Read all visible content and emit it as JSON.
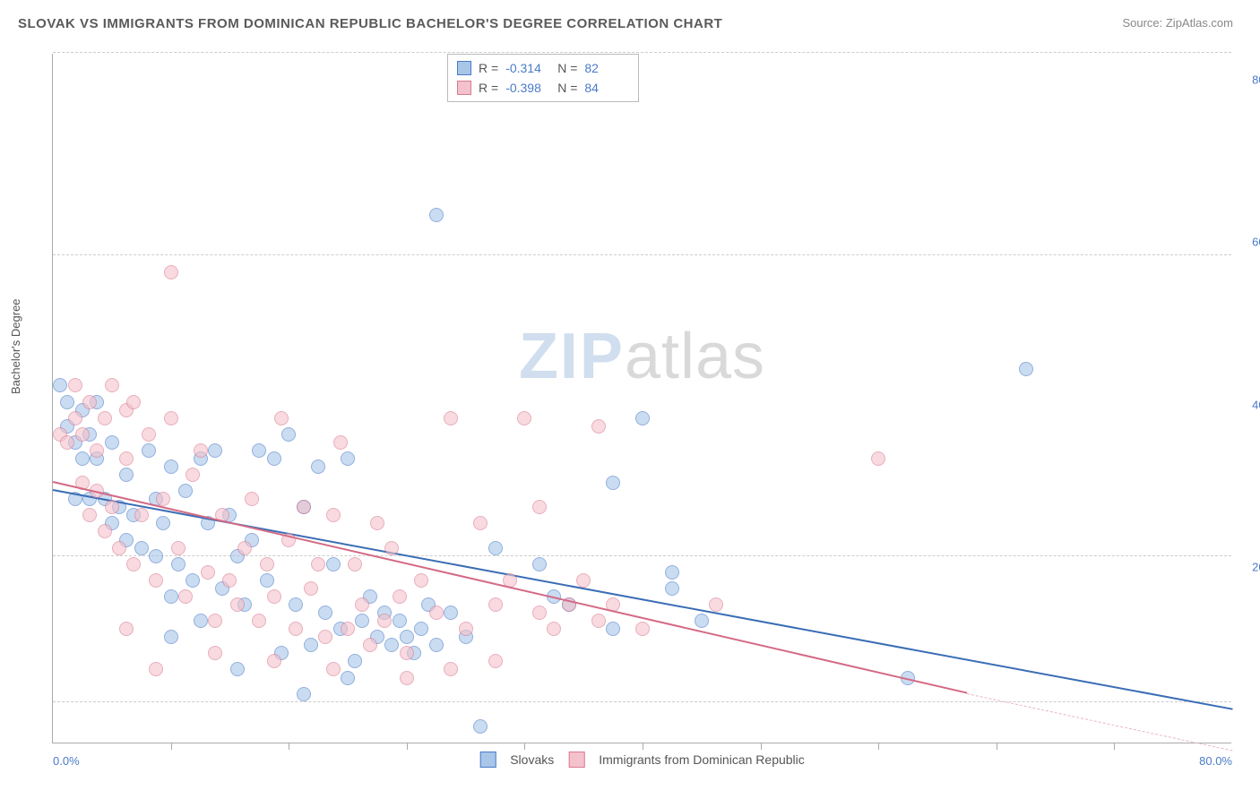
{
  "title": "SLOVAK VS IMMIGRANTS FROM DOMINICAN REPUBLIC BACHELOR'S DEGREE CORRELATION CHART",
  "source_label": "Source: ",
  "source_value": "ZipAtlas.com",
  "ylabel": "Bachelor's Degree",
  "watermark": {
    "a": "ZIP",
    "b": "atlas"
  },
  "chart": {
    "type": "scatter",
    "background_color": "#ffffff",
    "grid_color": "#cccccc",
    "axis_color": "#aaaaaa",
    "label_color": "#4a7bc8",
    "xlim": [
      0,
      80
    ],
    "ylim": [
      0,
      85
    ],
    "ytick_labels": [
      {
        "v": 20,
        "t": "20.0%"
      },
      {
        "v": 40,
        "t": "40.0%"
      },
      {
        "v": 60,
        "t": "60.0%"
      },
      {
        "v": 80,
        "t": "80.0%"
      }
    ],
    "x_start_label": "0.0%",
    "x_end_label": "80.0%",
    "xtick_positions": [
      8,
      16,
      24,
      32,
      40,
      48,
      56,
      64,
      72
    ],
    "gridlines_y": [
      5,
      23,
      60,
      85
    ]
  },
  "correlation_box": {
    "rows": [
      {
        "swatch_fill": "#a8c6e8",
        "swatch_border": "#4a7bc8",
        "r_label": "R =",
        "r": "-0.314",
        "n_label": "N =",
        "n": "82"
      },
      {
        "swatch_fill": "#f4c2cc",
        "swatch_border": "#d97a8f",
        "r_label": "R =",
        "r": "-0.398",
        "n_label": "N =",
        "n": "84"
      }
    ]
  },
  "legend": {
    "items": [
      {
        "swatch_fill": "#a8c6e8",
        "swatch_border": "#4a7bc8",
        "label": "Slovaks"
      },
      {
        "swatch_fill": "#f4c2cc",
        "swatch_border": "#d97a8f",
        "label": "Immigrants from Dominican Republic"
      }
    ]
  },
  "series": [
    {
      "name": "slovaks",
      "fill": "#a8c6e8",
      "stroke": "#4a7bc8",
      "marker_size": 16,
      "trend": {
        "x1": 0,
        "y1": 31,
        "x2": 80,
        "y2": 4,
        "color": "#3a6db5",
        "width": 2
      },
      "points": [
        [
          0.5,
          44
        ],
        [
          1,
          42
        ],
        [
          1,
          39
        ],
        [
          1.5,
          37
        ],
        [
          1.5,
          30
        ],
        [
          2,
          41
        ],
        [
          2,
          35
        ],
        [
          2.5,
          38
        ],
        [
          2.5,
          30
        ],
        [
          3,
          42
        ],
        [
          3,
          35
        ],
        [
          3.5,
          30
        ],
        [
          4,
          27
        ],
        [
          4,
          37
        ],
        [
          4.5,
          29
        ],
        [
          5,
          25
        ],
        [
          5,
          33
        ],
        [
          5.5,
          28
        ],
        [
          6,
          24
        ],
        [
          6.5,
          36
        ],
        [
          7,
          23
        ],
        [
          7,
          30
        ],
        [
          7.5,
          27
        ],
        [
          8,
          18
        ],
        [
          8,
          34
        ],
        [
          8.5,
          22
        ],
        [
          9,
          31
        ],
        [
          9.5,
          20
        ],
        [
          10,
          35
        ],
        [
          10,
          15
        ],
        [
          10.5,
          27
        ],
        [
          11,
          36
        ],
        [
          11.5,
          19
        ],
        [
          12,
          28
        ],
        [
          12.5,
          23
        ],
        [
          13,
          17
        ],
        [
          13.5,
          25
        ],
        [
          14,
          36
        ],
        [
          14.5,
          20
        ],
        [
          15,
          35
        ],
        [
          15.5,
          11
        ],
        [
          16,
          38
        ],
        [
          16.5,
          17
        ],
        [
          17,
          29
        ],
        [
          17.5,
          12
        ],
        [
          18,
          34
        ],
        [
          18.5,
          16
        ],
        [
          19,
          22
        ],
        [
          19.5,
          14
        ],
        [
          20,
          35
        ],
        [
          20.5,
          10
        ],
        [
          21,
          15
        ],
        [
          21.5,
          18
        ],
        [
          22,
          13
        ],
        [
          22.5,
          16
        ],
        [
          23,
          12
        ],
        [
          23.5,
          15
        ],
        [
          24,
          13
        ],
        [
          24.5,
          11
        ],
        [
          25,
          14
        ],
        [
          25.5,
          17
        ],
        [
          26,
          12
        ],
        [
          27,
          16
        ],
        [
          28,
          13
        ],
        [
          29,
          2
        ],
        [
          17,
          6
        ],
        [
          20,
          8
        ],
        [
          26,
          65
        ],
        [
          30,
          24
        ],
        [
          33,
          22
        ],
        [
          34,
          18
        ],
        [
          35,
          17
        ],
        [
          38,
          32
        ],
        [
          40,
          40
        ],
        [
          42,
          19
        ],
        [
          42,
          21
        ],
        [
          44,
          15
        ],
        [
          38,
          14
        ],
        [
          58,
          8
        ],
        [
          66,
          46
        ],
        [
          12.5,
          9
        ],
        [
          8,
          13
        ]
      ]
    },
    {
      "name": "dominican",
      "fill": "#f4c2cc",
      "stroke": "#d97a8f",
      "marker_size": 16,
      "trend_solid": {
        "x1": 0,
        "y1": 32,
        "x2": 62,
        "y2": 6,
        "color": "#d46a85",
        "width": 2
      },
      "trend_dash": {
        "x1": 62,
        "y1": 6,
        "x2": 80,
        "y2": -1,
        "color": "#e8b6c0",
        "width": 1.5
      },
      "points": [
        [
          0.5,
          38
        ],
        [
          1,
          37
        ],
        [
          1.5,
          40
        ],
        [
          1.5,
          44
        ],
        [
          2,
          38
        ],
        [
          2,
          32
        ],
        [
          2.5,
          42
        ],
        [
          2.5,
          28
        ],
        [
          3,
          36
        ],
        [
          3,
          31
        ],
        [
          3.5,
          40
        ],
        [
          3.5,
          26
        ],
        [
          4,
          44
        ],
        [
          4,
          29
        ],
        [
          4.5,
          24
        ],
        [
          5,
          41
        ],
        [
          5,
          35
        ],
        [
          5.5,
          42
        ],
        [
          5.5,
          22
        ],
        [
          6,
          28
        ],
        [
          6.5,
          38
        ],
        [
          7,
          20
        ],
        [
          7.5,
          30
        ],
        [
          8,
          40
        ],
        [
          8.5,
          24
        ],
        [
          9,
          18
        ],
        [
          9.5,
          33
        ],
        [
          10,
          36
        ],
        [
          10.5,
          21
        ],
        [
          11,
          15
        ],
        [
          11.5,
          28
        ],
        [
          12,
          20
        ],
        [
          12.5,
          17
        ],
        [
          13,
          24
        ],
        [
          13.5,
          30
        ],
        [
          14,
          15
        ],
        [
          14.5,
          22
        ],
        [
          15,
          18
        ],
        [
          15.5,
          40
        ],
        [
          16,
          25
        ],
        [
          16.5,
          14
        ],
        [
          17,
          29
        ],
        [
          17.5,
          19
        ],
        [
          18,
          22
        ],
        [
          18.5,
          13
        ],
        [
          19,
          28
        ],
        [
          19.5,
          37
        ],
        [
          20,
          14
        ],
        [
          20.5,
          22
        ],
        [
          21,
          17
        ],
        [
          21.5,
          12
        ],
        [
          22,
          27
        ],
        [
          22.5,
          15
        ],
        [
          23,
          24
        ],
        [
          23.5,
          18
        ],
        [
          24,
          11
        ],
        [
          25,
          20
        ],
        [
          26,
          16
        ],
        [
          27,
          40
        ],
        [
          28,
          14
        ],
        [
          29,
          27
        ],
        [
          30,
          17
        ],
        [
          31,
          20
        ],
        [
          32,
          40
        ],
        [
          33,
          16
        ],
        [
          34,
          14
        ],
        [
          35,
          17
        ],
        [
          36,
          20
        ],
        [
          37,
          15
        ],
        [
          38,
          17
        ],
        [
          40,
          14
        ],
        [
          30,
          10
        ],
        [
          27,
          9
        ],
        [
          24,
          8
        ],
        [
          19,
          9
        ],
        [
          15,
          10
        ],
        [
          11,
          11
        ],
        [
          8,
          58
        ],
        [
          7,
          9
        ],
        [
          5,
          14
        ],
        [
          56,
          35
        ],
        [
          37,
          39
        ],
        [
          45,
          17
        ],
        [
          33,
          29
        ]
      ]
    }
  ]
}
